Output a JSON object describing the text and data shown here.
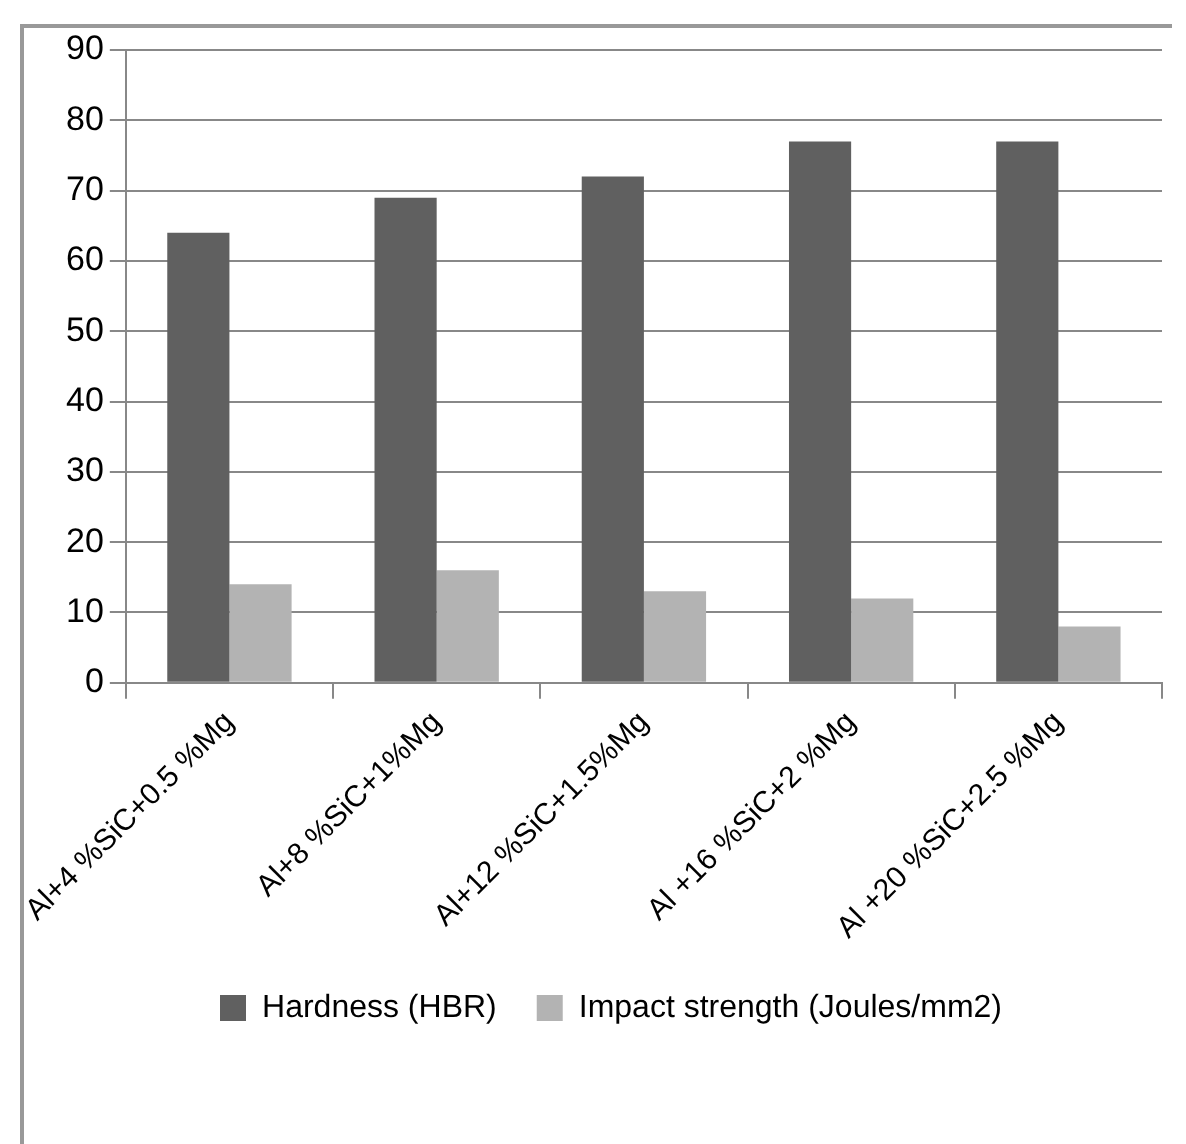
{
  "chart_data": {
    "type": "bar",
    "categories": [
      "Al+4 %SiC+0.5 %Mg",
      "Al+8 %SiC+1%Mg",
      "Al+12 %SiC+1.5%Mg",
      "Al +16 %SiC+2 %Mg",
      "Al +20 %SiC+2.5 %Mg"
    ],
    "series": [
      {
        "name": "Hardness (HBR)",
        "color": "#606060",
        "values": [
          64,
          69,
          72,
          77,
          77
        ]
      },
      {
        "name": "Impact strength (Joules/mm2)",
        "color": "#b3b3b3",
        "values": [
          14,
          16,
          13,
          12,
          8
        ]
      }
    ],
    "ylim": [
      0,
      90
    ],
    "yticks": [
      0,
      10,
      20,
      30,
      40,
      50,
      60,
      70,
      80,
      90
    ],
    "grid": "y",
    "legend": "bottom"
  }
}
